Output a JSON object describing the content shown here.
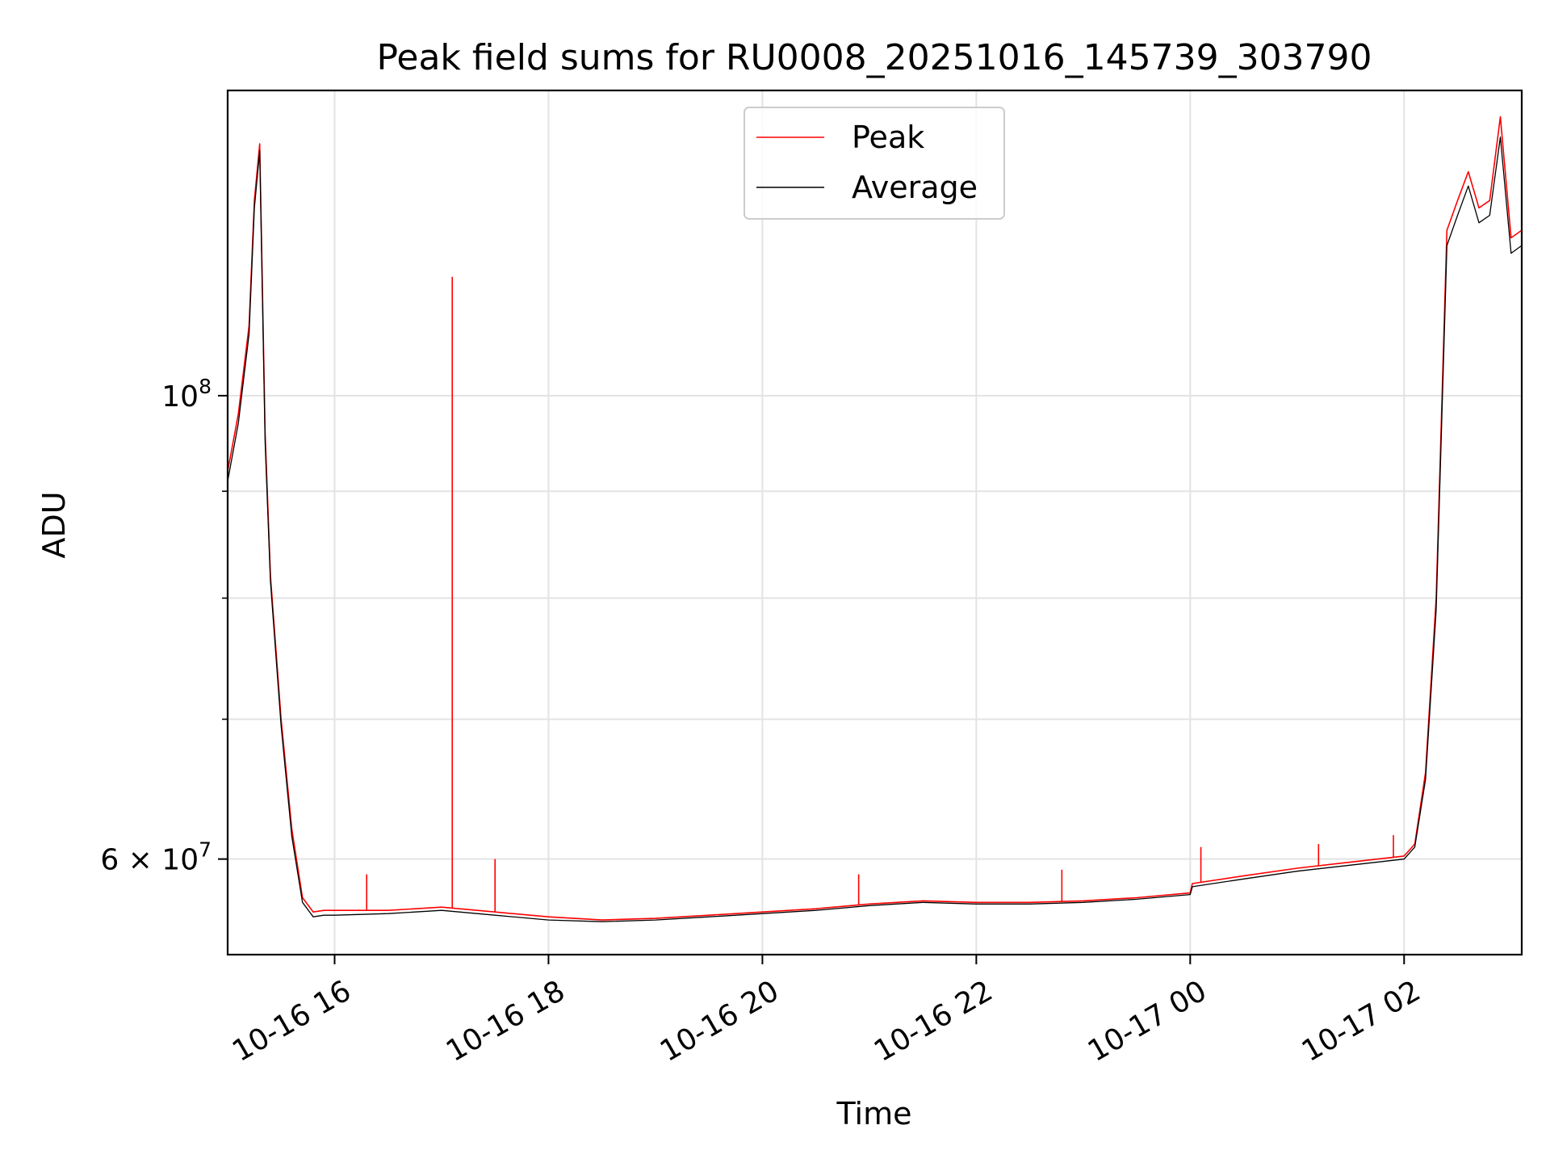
{
  "chart_data": {
    "type": "line",
    "title": "Peak field sums for RU0008_20251016_145739_303790",
    "xlabel": "Time",
    "ylabel": "ADU",
    "yscale": "log",
    "ylim": [
      54000000,
      140000000
    ],
    "xlim_hours": [
      15.0,
      27.1
    ],
    "x_tick_labels": [
      "10-16 16",
      "10-16 18",
      "10-16 20",
      "10-16 22",
      "10-17 00",
      "10-17 02"
    ],
    "x_tick_hours": [
      16,
      18,
      20,
      22,
      24,
      26
    ],
    "y_tick_labels": [
      {
        "base": "10",
        "exp": "8",
        "value": 100000000
      },
      {
        "coef": "6",
        "base": "10",
        "exp": "7",
        "value": 60000000
      }
    ],
    "y_minor_values": [
      70000000,
      80000000,
      90000000
    ],
    "grid": true,
    "legend": {
      "location": "top-center",
      "entries": [
        "Peak",
        "Average"
      ]
    },
    "series": [
      {
        "name": "Peak",
        "color": "#ff0000",
        "x_hours": [
          15.0,
          15.1,
          15.2,
          15.25,
          15.3,
          15.35,
          15.4,
          15.5,
          15.6,
          15.7,
          15.8,
          15.9,
          16.0,
          16.5,
          17.0,
          17.5,
          18.0,
          18.5,
          19.0,
          19.5,
          20.0,
          20.5,
          21.0,
          21.5,
          22.0,
          22.5,
          23.0,
          23.5,
          24.0,
          24.02,
          24.5,
          25.0,
          25.5,
          26.0,
          26.1,
          26.2,
          26.3,
          26.4,
          26.5,
          26.6,
          26.7,
          26.8,
          26.9,
          27.0,
          27.1
        ],
        "values": [
          92000000,
          98000000,
          108000000,
          124000000,
          132000000,
          96000000,
          82000000,
          70000000,
          62000000,
          57500000,
          56600000,
          56700000,
          56700000,
          56700000,
          56900000,
          56600000,
          56300000,
          56100000,
          56200000,
          56400000,
          56600000,
          56800000,
          57100000,
          57300000,
          57200000,
          57200000,
          57300000,
          57500000,
          57800000,
          58400000,
          58900000,
          59400000,
          59800000,
          60200000,
          61000000,
          66000000,
          80000000,
          120000000,
          124000000,
          128000000,
          123000000,
          124000000,
          136000000,
          119000000,
          120000000
        ]
      },
      {
        "name": "Average",
        "color": "#000000",
        "x_hours": [
          15.0,
          15.1,
          15.2,
          15.25,
          15.3,
          15.35,
          15.4,
          15.5,
          15.6,
          15.7,
          15.8,
          15.9,
          16.0,
          16.5,
          17.0,
          17.5,
          18.0,
          18.5,
          19.0,
          19.5,
          20.0,
          20.5,
          21.0,
          21.5,
          22.0,
          22.5,
          23.0,
          23.5,
          24.0,
          24.02,
          24.5,
          25.0,
          25.5,
          26.0,
          26.1,
          26.2,
          26.3,
          26.4,
          26.5,
          26.6,
          26.7,
          26.8,
          26.9,
          27.0,
          27.1
        ],
        "values": [
          91000000,
          97000000,
          107000000,
          123000000,
          131000000,
          95000000,
          81500000,
          69500000,
          61500000,
          57200000,
          56300000,
          56400000,
          56400000,
          56500000,
          56700000,
          56400000,
          56100000,
          56000000,
          56100000,
          56300000,
          56500000,
          56700000,
          57000000,
          57200000,
          57100000,
          57100000,
          57200000,
          57400000,
          57700000,
          58200000,
          58700000,
          59200000,
          59600000,
          60000000,
          60800000,
          65500000,
          79000000,
          118000000,
          122000000,
          126000000,
          121000000,
          122000000,
          133000000,
          117000000,
          118000000
        ]
      }
    ],
    "peak_spikes": [
      {
        "x_hour": 17.1,
        "value": 114000000
      },
      {
        "x_hour": 16.3,
        "value": 59000000
      },
      {
        "x_hour": 17.5,
        "value": 60000000
      },
      {
        "x_hour": 20.9,
        "value": 59000000
      },
      {
        "x_hour": 22.8,
        "value": 59300000
      },
      {
        "x_hour": 24.1,
        "value": 60800000
      },
      {
        "x_hour": 25.2,
        "value": 61000000
      },
      {
        "x_hour": 25.9,
        "value": 61600000
      }
    ]
  }
}
